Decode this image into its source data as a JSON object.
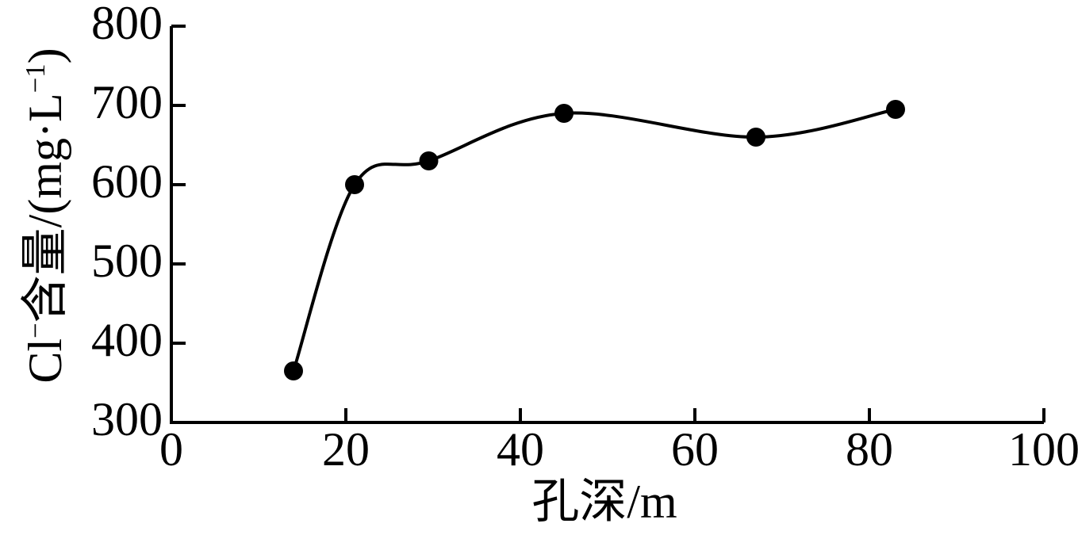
{
  "page": {
    "background": "#ffffff",
    "foreground": "#000000"
  },
  "chart_data": {
    "type": "line",
    "title": "",
    "xlabel": "孔深/m",
    "ylabel": "Cl⁻含量/(mg·L⁻¹)",
    "ylabel_parts": [
      {
        "text": "Cl"
      },
      {
        "text": "−",
        "sup": true
      },
      {
        "text": "含量/(mg·L"
      },
      {
        "text": "−1",
        "sup": true
      },
      {
        "text": ")"
      }
    ],
    "x": [
      14,
      21,
      29.5,
      45,
      67,
      83
    ],
    "y": [
      365,
      600,
      630,
      690,
      660,
      695
    ],
    "xlim": [
      0,
      100
    ],
    "ylim": [
      300,
      800
    ],
    "x_ticks": [
      0,
      20,
      40,
      60,
      80,
      100
    ],
    "y_ticks": [
      300,
      400,
      500,
      600,
      700,
      800
    ],
    "grid": false,
    "legend": "none",
    "smooth": true,
    "marker": "filled-circle",
    "marker_radius": 12,
    "line_color": "#000000",
    "marker_color": "#000000",
    "axis_color": "#000000",
    "tick_label_color": "#000000"
  }
}
